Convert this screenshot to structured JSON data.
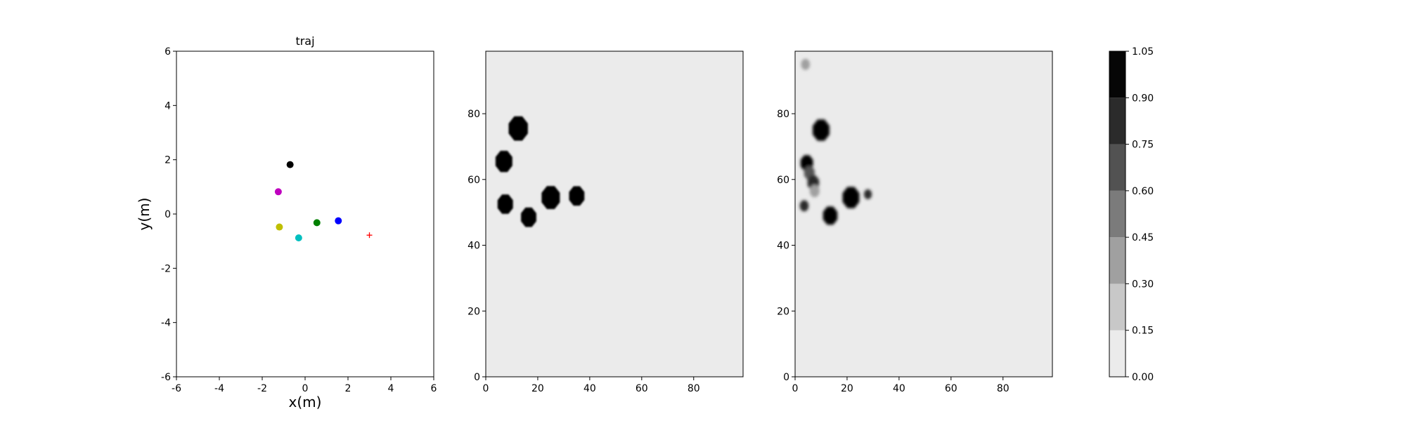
{
  "chart_data": [
    {
      "type": "scatter",
      "title": "traj",
      "xlabel": "x(m)",
      "ylabel": "y(m)",
      "xlim": [
        -6,
        6
      ],
      "ylim": [
        -6,
        6
      ],
      "xticks": [
        -6,
        -4,
        -2,
        0,
        2,
        4,
        6
      ],
      "yticks": [
        -6,
        -4,
        -2,
        0,
        2,
        4,
        6
      ],
      "grid": false,
      "points": [
        {
          "x": -0.7,
          "y": 1.82,
          "color": "#000000",
          "marker": "circle"
        },
        {
          "x": -1.25,
          "y": 0.82,
          "color": "#bf00bf",
          "marker": "circle"
        },
        {
          "x": 0.55,
          "y": -0.32,
          "color": "#008000",
          "marker": "circle"
        },
        {
          "x": 1.55,
          "y": -0.25,
          "color": "#0000ff",
          "marker": "circle"
        },
        {
          "x": -1.2,
          "y": -0.48,
          "color": "#bfbf00",
          "marker": "circle"
        },
        {
          "x": -0.3,
          "y": -0.88,
          "color": "#00bfbf",
          "marker": "circle"
        },
        {
          "x": 3.0,
          "y": -0.78,
          "color": "#ff0000",
          "marker": "plus"
        }
      ]
    },
    {
      "type": "heatmap",
      "xlim": [
        0,
        99
      ],
      "ylim": [
        0,
        99
      ],
      "xticks": [
        0,
        20,
        40,
        60,
        80
      ],
      "yticks": [
        0,
        20,
        40,
        60,
        80
      ],
      "background_value": 0.05,
      "blobs": [
        {
          "x": 12.5,
          "y": 75.5,
          "r": 4,
          "value": 1.0
        },
        {
          "x": 7,
          "y": 65.5,
          "r": 3.5,
          "value": 1.0
        },
        {
          "x": 7.5,
          "y": 52.5,
          "r": 3.2,
          "value": 1.0
        },
        {
          "x": 16.5,
          "y": 48.5,
          "r": 3.2,
          "value": 1.0
        },
        {
          "x": 25,
          "y": 54.5,
          "r": 3.8,
          "value": 1.0
        },
        {
          "x": 35,
          "y": 55,
          "r": 3.2,
          "value": 1.0
        }
      ]
    },
    {
      "type": "heatmap",
      "xlim": [
        0,
        99
      ],
      "ylim": [
        0,
        99
      ],
      "xticks": [
        0,
        20,
        40,
        60,
        80
      ],
      "yticks": [
        0,
        20,
        40,
        60,
        80
      ],
      "background_value": 0.05,
      "blobs": [
        {
          "x": 4,
          "y": 95,
          "r": 1.8,
          "value": 0.4
        },
        {
          "x": 10,
          "y": 75,
          "r": 3.5,
          "value": 1.0
        },
        {
          "x": 4.5,
          "y": 65,
          "r": 2.6,
          "value": 0.9
        },
        {
          "x": 5.5,
          "y": 62,
          "r": 2.2,
          "value": 0.7
        },
        {
          "x": 7,
          "y": 59,
          "r": 2.4,
          "value": 0.8
        },
        {
          "x": 7.5,
          "y": 56.5,
          "r": 2.0,
          "value": 0.4
        },
        {
          "x": 3.5,
          "y": 52,
          "r": 1.8,
          "value": 0.8
        },
        {
          "x": 13.5,
          "y": 49,
          "r": 3.0,
          "value": 1.0
        },
        {
          "x": 21.5,
          "y": 54.5,
          "r": 3.5,
          "value": 1.0
        },
        {
          "x": 28,
          "y": 55.5,
          "r": 1.6,
          "value": 0.85
        }
      ]
    },
    {
      "type": "colorbar",
      "levels": [
        0.0,
        0.15,
        0.3,
        0.45,
        0.6,
        0.75,
        0.9,
        1.05
      ],
      "tick_labels": [
        "0.00",
        "0.15",
        "0.30",
        "0.45",
        "0.60",
        "0.75",
        "0.90",
        "1.05"
      ],
      "colors": [
        "#ebebeb",
        "#c8c8c8",
        "#a0a0a0",
        "#7b7b7b",
        "#525252",
        "#2b2b2b",
        "#060606"
      ]
    }
  ]
}
